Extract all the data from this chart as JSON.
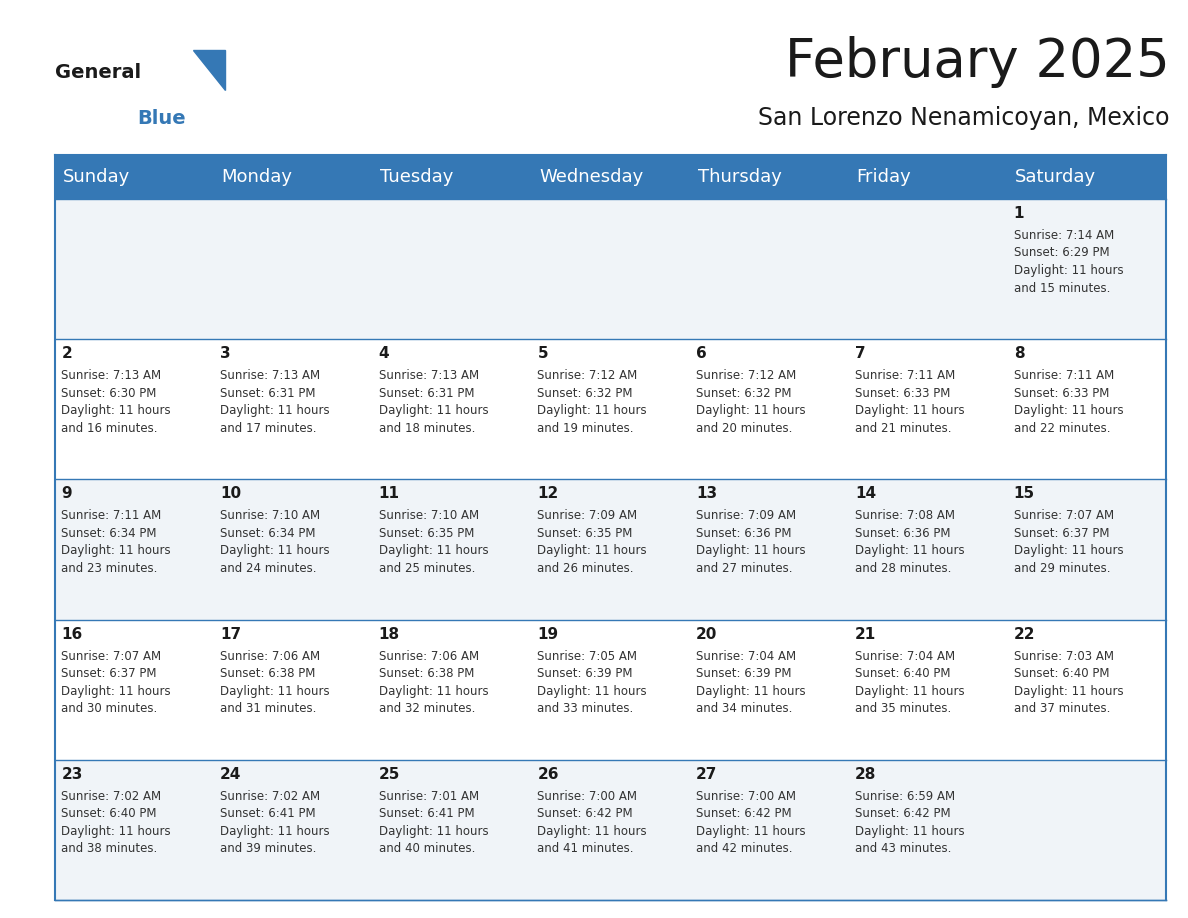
{
  "title": "February 2025",
  "subtitle": "San Lorenzo Nenamicoyan, Mexico",
  "header_color": "#3578b5",
  "header_text_color": "#ffffff",
  "background_color": "#ffffff",
  "cell_bg_even": "#f0f4f8",
  "cell_bg_odd": "#ffffff",
  "day_names": [
    "Sunday",
    "Monday",
    "Tuesday",
    "Wednesday",
    "Thursday",
    "Friday",
    "Saturday"
  ],
  "title_fontsize": 38,
  "subtitle_fontsize": 17,
  "header_fontsize": 13,
  "day_num_fontsize": 11,
  "info_fontsize": 8.5,
  "calendar": [
    [
      {
        "day": 0,
        "info": ""
      },
      {
        "day": 0,
        "info": ""
      },
      {
        "day": 0,
        "info": ""
      },
      {
        "day": 0,
        "info": ""
      },
      {
        "day": 0,
        "info": ""
      },
      {
        "day": 0,
        "info": ""
      },
      {
        "day": 1,
        "info": "Sunrise: 7:14 AM\nSunset: 6:29 PM\nDaylight: 11 hours\nand 15 minutes."
      }
    ],
    [
      {
        "day": 2,
        "info": "Sunrise: 7:13 AM\nSunset: 6:30 PM\nDaylight: 11 hours\nand 16 minutes."
      },
      {
        "day": 3,
        "info": "Sunrise: 7:13 AM\nSunset: 6:31 PM\nDaylight: 11 hours\nand 17 minutes."
      },
      {
        "day": 4,
        "info": "Sunrise: 7:13 AM\nSunset: 6:31 PM\nDaylight: 11 hours\nand 18 minutes."
      },
      {
        "day": 5,
        "info": "Sunrise: 7:12 AM\nSunset: 6:32 PM\nDaylight: 11 hours\nand 19 minutes."
      },
      {
        "day": 6,
        "info": "Sunrise: 7:12 AM\nSunset: 6:32 PM\nDaylight: 11 hours\nand 20 minutes."
      },
      {
        "day": 7,
        "info": "Sunrise: 7:11 AM\nSunset: 6:33 PM\nDaylight: 11 hours\nand 21 minutes."
      },
      {
        "day": 8,
        "info": "Sunrise: 7:11 AM\nSunset: 6:33 PM\nDaylight: 11 hours\nand 22 minutes."
      }
    ],
    [
      {
        "day": 9,
        "info": "Sunrise: 7:11 AM\nSunset: 6:34 PM\nDaylight: 11 hours\nand 23 minutes."
      },
      {
        "day": 10,
        "info": "Sunrise: 7:10 AM\nSunset: 6:34 PM\nDaylight: 11 hours\nand 24 minutes."
      },
      {
        "day": 11,
        "info": "Sunrise: 7:10 AM\nSunset: 6:35 PM\nDaylight: 11 hours\nand 25 minutes."
      },
      {
        "day": 12,
        "info": "Sunrise: 7:09 AM\nSunset: 6:35 PM\nDaylight: 11 hours\nand 26 minutes."
      },
      {
        "day": 13,
        "info": "Sunrise: 7:09 AM\nSunset: 6:36 PM\nDaylight: 11 hours\nand 27 minutes."
      },
      {
        "day": 14,
        "info": "Sunrise: 7:08 AM\nSunset: 6:36 PM\nDaylight: 11 hours\nand 28 minutes."
      },
      {
        "day": 15,
        "info": "Sunrise: 7:07 AM\nSunset: 6:37 PM\nDaylight: 11 hours\nand 29 minutes."
      }
    ],
    [
      {
        "day": 16,
        "info": "Sunrise: 7:07 AM\nSunset: 6:37 PM\nDaylight: 11 hours\nand 30 minutes."
      },
      {
        "day": 17,
        "info": "Sunrise: 7:06 AM\nSunset: 6:38 PM\nDaylight: 11 hours\nand 31 minutes."
      },
      {
        "day": 18,
        "info": "Sunrise: 7:06 AM\nSunset: 6:38 PM\nDaylight: 11 hours\nand 32 minutes."
      },
      {
        "day": 19,
        "info": "Sunrise: 7:05 AM\nSunset: 6:39 PM\nDaylight: 11 hours\nand 33 minutes."
      },
      {
        "day": 20,
        "info": "Sunrise: 7:04 AM\nSunset: 6:39 PM\nDaylight: 11 hours\nand 34 minutes."
      },
      {
        "day": 21,
        "info": "Sunrise: 7:04 AM\nSunset: 6:40 PM\nDaylight: 11 hours\nand 35 minutes."
      },
      {
        "day": 22,
        "info": "Sunrise: 7:03 AM\nSunset: 6:40 PM\nDaylight: 11 hours\nand 37 minutes."
      }
    ],
    [
      {
        "day": 23,
        "info": "Sunrise: 7:02 AM\nSunset: 6:40 PM\nDaylight: 11 hours\nand 38 minutes."
      },
      {
        "day": 24,
        "info": "Sunrise: 7:02 AM\nSunset: 6:41 PM\nDaylight: 11 hours\nand 39 minutes."
      },
      {
        "day": 25,
        "info": "Sunrise: 7:01 AM\nSunset: 6:41 PM\nDaylight: 11 hours\nand 40 minutes."
      },
      {
        "day": 26,
        "info": "Sunrise: 7:00 AM\nSunset: 6:42 PM\nDaylight: 11 hours\nand 41 minutes."
      },
      {
        "day": 27,
        "info": "Sunrise: 7:00 AM\nSunset: 6:42 PM\nDaylight: 11 hours\nand 42 minutes."
      },
      {
        "day": 28,
        "info": "Sunrise: 6:59 AM\nSunset: 6:42 PM\nDaylight: 11 hours\nand 43 minutes."
      },
      {
        "day": 0,
        "info": ""
      }
    ]
  ],
  "logo_general_color": "#1a1a1a",
  "logo_blue_color": "#3578b5",
  "border_color": "#3578b5",
  "line_color": "#3578b5"
}
